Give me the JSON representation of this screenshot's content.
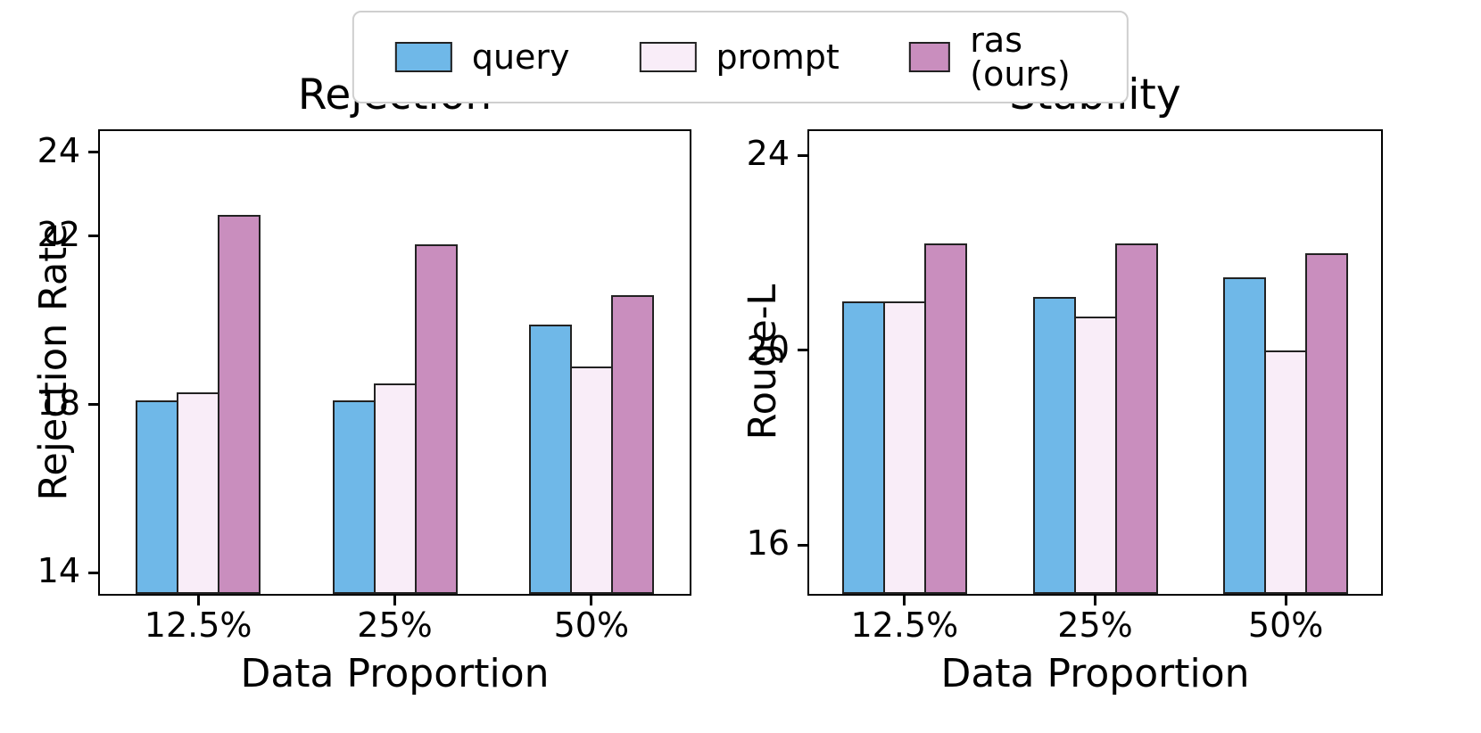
{
  "colors": {
    "query": "#6fb8e8",
    "prompt": "#f9edf8",
    "ras": "#c98ebe",
    "edge": "#222222"
  },
  "legend": {
    "items": [
      {
        "label": "query",
        "series": "query"
      },
      {
        "label": "prompt",
        "series": "prompt"
      },
      {
        "label": "ras (ours)",
        "series": "ras"
      }
    ]
  },
  "chart_data": [
    {
      "type": "bar",
      "title": "Rejection",
      "xlabel": "Data Proportion",
      "ylabel": "Rejection Rate",
      "categories": [
        "12.5%",
        "25%",
        "50%"
      ],
      "series": [
        {
          "name": "query",
          "values": [
            18.1,
            18.1,
            19.9
          ]
        },
        {
          "name": "prompt",
          "values": [
            18.3,
            18.5,
            18.9
          ]
        },
        {
          "name": "ras (ours)",
          "values": [
            22.5,
            21.8,
            20.6
          ]
        }
      ],
      "ylim": [
        13.5,
        24.5
      ],
      "yticks": [
        14,
        18,
        22,
        24
      ],
      "grid": false,
      "legend_position": "top-center-shared"
    },
    {
      "type": "bar",
      "title": "Stability",
      "xlabel": "Data Proportion",
      "ylabel": "Rouge-L",
      "categories": [
        "12.5%",
        "25%",
        "50%"
      ],
      "series": [
        {
          "name": "query",
          "values": [
            21.0,
            21.1,
            21.5
          ]
        },
        {
          "name": "prompt",
          "values": [
            21.0,
            20.7,
            20.0
          ]
        },
        {
          "name": "ras (ours)",
          "values": [
            22.2,
            22.2,
            22.0
          ]
        }
      ],
      "ylim": [
        15.0,
        24.5
      ],
      "yticks": [
        16,
        20,
        24
      ],
      "grid": false,
      "legend_position": "top-center-shared"
    }
  ]
}
